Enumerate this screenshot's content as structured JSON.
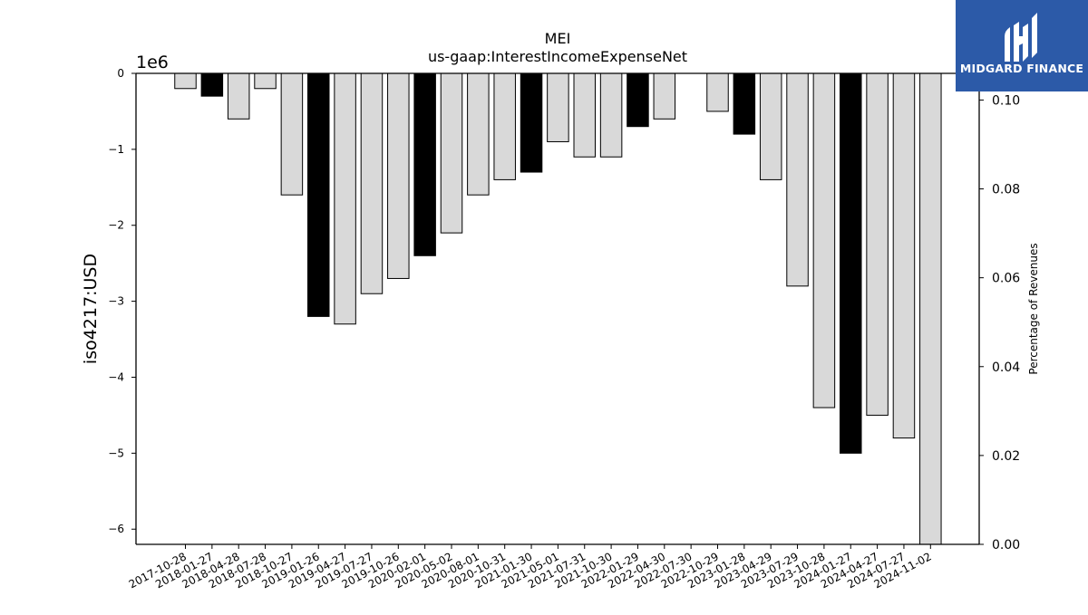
{
  "chart_data": {
    "type": "bar",
    "title": "MEI",
    "subtitle": "us-gaap:InterestIncomeExpenseNet",
    "ylabel": "iso4217:USD",
    "y2label": "Percentage of Revenues",
    "y_offset_label": "1e6",
    "ylim": [
      -6.2,
      0
    ],
    "y2lim": [
      0.0,
      0.106
    ],
    "yticks": [
      "0",
      "−1",
      "−2",
      "−3",
      "−4",
      "−5",
      "−6"
    ],
    "y2ticks": [
      "0.00",
      "0.02",
      "0.04",
      "0.06",
      "0.08",
      "0.10"
    ],
    "grid": false,
    "unit_multiplier": 1000000,
    "categories": [
      "2017-10-28",
      "2018-01-27",
      "2018-04-28",
      "2018-07-28",
      "2018-10-27",
      "2019-01-26",
      "2019-04-27",
      "2019-07-27",
      "2019-10-26",
      "2020-02-01",
      "2020-05-02",
      "2020-08-01",
      "2020-10-31",
      "2021-01-30",
      "2021-05-01",
      "2021-07-31",
      "2021-10-30",
      "2022-01-29",
      "2022-04-30",
      "2022-07-30",
      "2022-10-29",
      "2023-01-28",
      "2023-04-29",
      "2023-07-29",
      "2023-10-28",
      "2024-01-27",
      "2024-04-27",
      "2024-07-27",
      "2024-11-02"
    ],
    "values": [
      -0.2,
      -0.3,
      -0.6,
      -0.2,
      -1.6,
      -3.2,
      -3.3,
      -2.9,
      -2.7,
      -2.4,
      -2.1,
      -1.6,
      -1.4,
      -1.3,
      -0.9,
      -1.1,
      -1.1,
      -0.7,
      -0.6,
      0,
      -0.5,
      -0.8,
      -1.4,
      -2.8,
      -4.4,
      -5.0,
      -4.5,
      -4.8,
      -6.2
    ],
    "highlight": [
      false,
      true,
      false,
      false,
      false,
      true,
      false,
      false,
      false,
      true,
      false,
      false,
      false,
      true,
      false,
      false,
      false,
      true,
      false,
      false,
      false,
      true,
      false,
      false,
      false,
      true,
      false,
      false,
      false
    ],
    "colors": {
      "normal": "#d9d9d9",
      "highlight": "#000000",
      "edge": "#000000"
    }
  },
  "logo": {
    "text": "MIDGARD FINANCE",
    "background": "#2c5aa8"
  }
}
